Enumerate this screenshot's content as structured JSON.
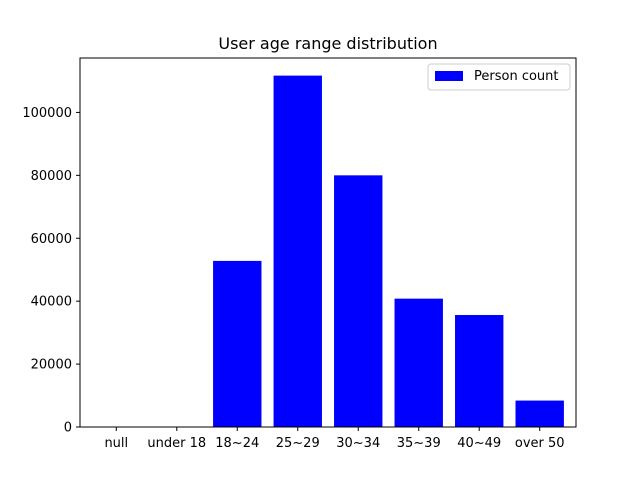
{
  "chart_data": {
    "type": "bar",
    "title": "User age range distribution",
    "xlabel": "",
    "ylabel": "",
    "categories": [
      "null",
      "under 18",
      "18~24",
      "25~29",
      "30~34",
      "35~39",
      "40~49",
      "over 50"
    ],
    "series": [
      {
        "name": "Person count",
        "color": "#0000ff",
        "values": [
          0,
          0,
          52800,
          111700,
          80000,
          40800,
          35600,
          8400
        ]
      }
    ],
    "ylim": [
      0,
      117300
    ],
    "yticks": [
      0,
      20000,
      40000,
      60000,
      80000,
      100000
    ],
    "ytick_labels": [
      "0",
      "20000",
      "40000",
      "60000",
      "80000",
      "100000"
    ],
    "legend_position": "upper-right",
    "grid": false
  }
}
